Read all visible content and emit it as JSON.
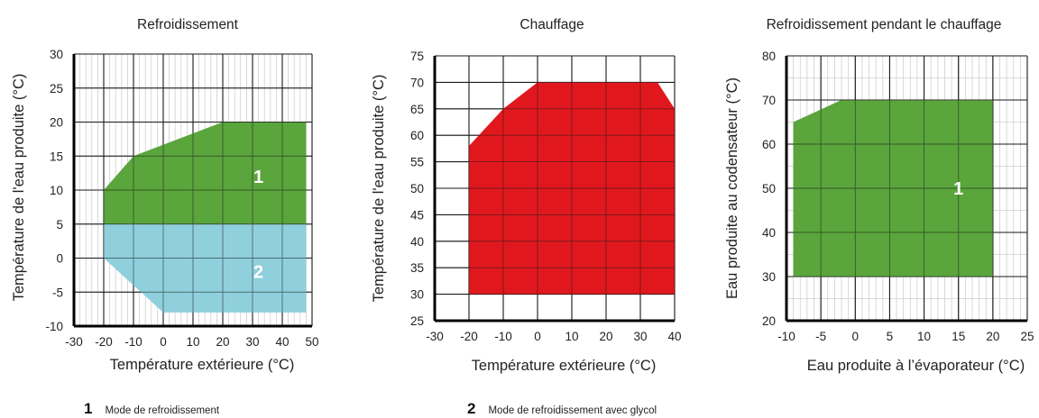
{
  "chart_data": [
    {
      "type": "area",
      "title": "Refroidissement",
      "xlabel": "Température extérieure (°C)",
      "ylabel": "Température de l'eau produite (°C)",
      "xlim": [
        -30,
        50
      ],
      "ylim": [
        -10,
        30
      ],
      "xticks": [
        "-30",
        "-20",
        "-10",
        "0",
        "10",
        "20",
        "30",
        "40",
        "50"
      ],
      "yticks": [
        "-10",
        "-5",
        "0",
        "5",
        "10",
        "15",
        "20",
        "25",
        "30"
      ],
      "grid": true,
      "regions": [
        {
          "label": "2",
          "color": "#8fd0dc",
          "points": [
            [
              -20,
              5
            ],
            [
              -20,
              0
            ],
            [
              0,
              -8
            ],
            [
              48,
              -8
            ],
            [
              48,
              5
            ]
          ]
        },
        {
          "label": "1",
          "color": "#5aa53c",
          "points": [
            [
              -20,
              5
            ],
            [
              -20,
              10
            ],
            [
              -10,
              15
            ],
            [
              20,
              20
            ],
            [
              48,
              20
            ],
            [
              48,
              5
            ]
          ]
        }
      ]
    },
    {
      "type": "area",
      "title": "Chauffage",
      "xlabel": "Température extérieure (°C)",
      "ylabel": "Température de l'eau produite (°C)",
      "xlim": [
        -30,
        40
      ],
      "ylim": [
        25,
        75
      ],
      "xticks": [
        "-30",
        "-20",
        "-10",
        "0",
        "10",
        "20",
        "30",
        "40"
      ],
      "yticks": [
        "25",
        "30",
        "35",
        "40",
        "45",
        "50",
        "55",
        "60",
        "65",
        "70",
        "75"
      ],
      "grid": true,
      "regions": [
        {
          "label": "",
          "color": "#e0181e",
          "points": [
            [
              -20,
              30
            ],
            [
              -20,
              58
            ],
            [
              -10,
              65
            ],
            [
              0,
              70
            ],
            [
              35,
              70
            ],
            [
              40,
              65
            ],
            [
              40,
              30
            ]
          ]
        }
      ]
    },
    {
      "type": "area",
      "title": "Refroidissement pendant le chauffage",
      "xlabel": "Eau produite à l’évaporateur (°C)",
      "ylabel": "Eau produite au codensateur (°C)",
      "xlim": [
        -10,
        25
      ],
      "ylim": [
        20,
        80
      ],
      "xticks": [
        "-10",
        "-5",
        "0",
        "5",
        "10",
        "15",
        "20",
        "25"
      ],
      "yticks": [
        "20",
        "30",
        "40",
        "50",
        "60",
        "70",
        "80"
      ],
      "grid": true,
      "regions": [
        {
          "label": "1",
          "color": "#5aa53c",
          "points": [
            [
              -9,
              30
            ],
            [
              -9,
              65
            ],
            [
              -2,
              70
            ],
            [
              20,
              70
            ],
            [
              20,
              30
            ]
          ]
        }
      ]
    }
  ],
  "legend": [
    {
      "num": "1",
      "text": "Mode de refroidissement"
    },
    {
      "num": "2",
      "text": "Mode de refroidissement avec glycol"
    }
  ]
}
